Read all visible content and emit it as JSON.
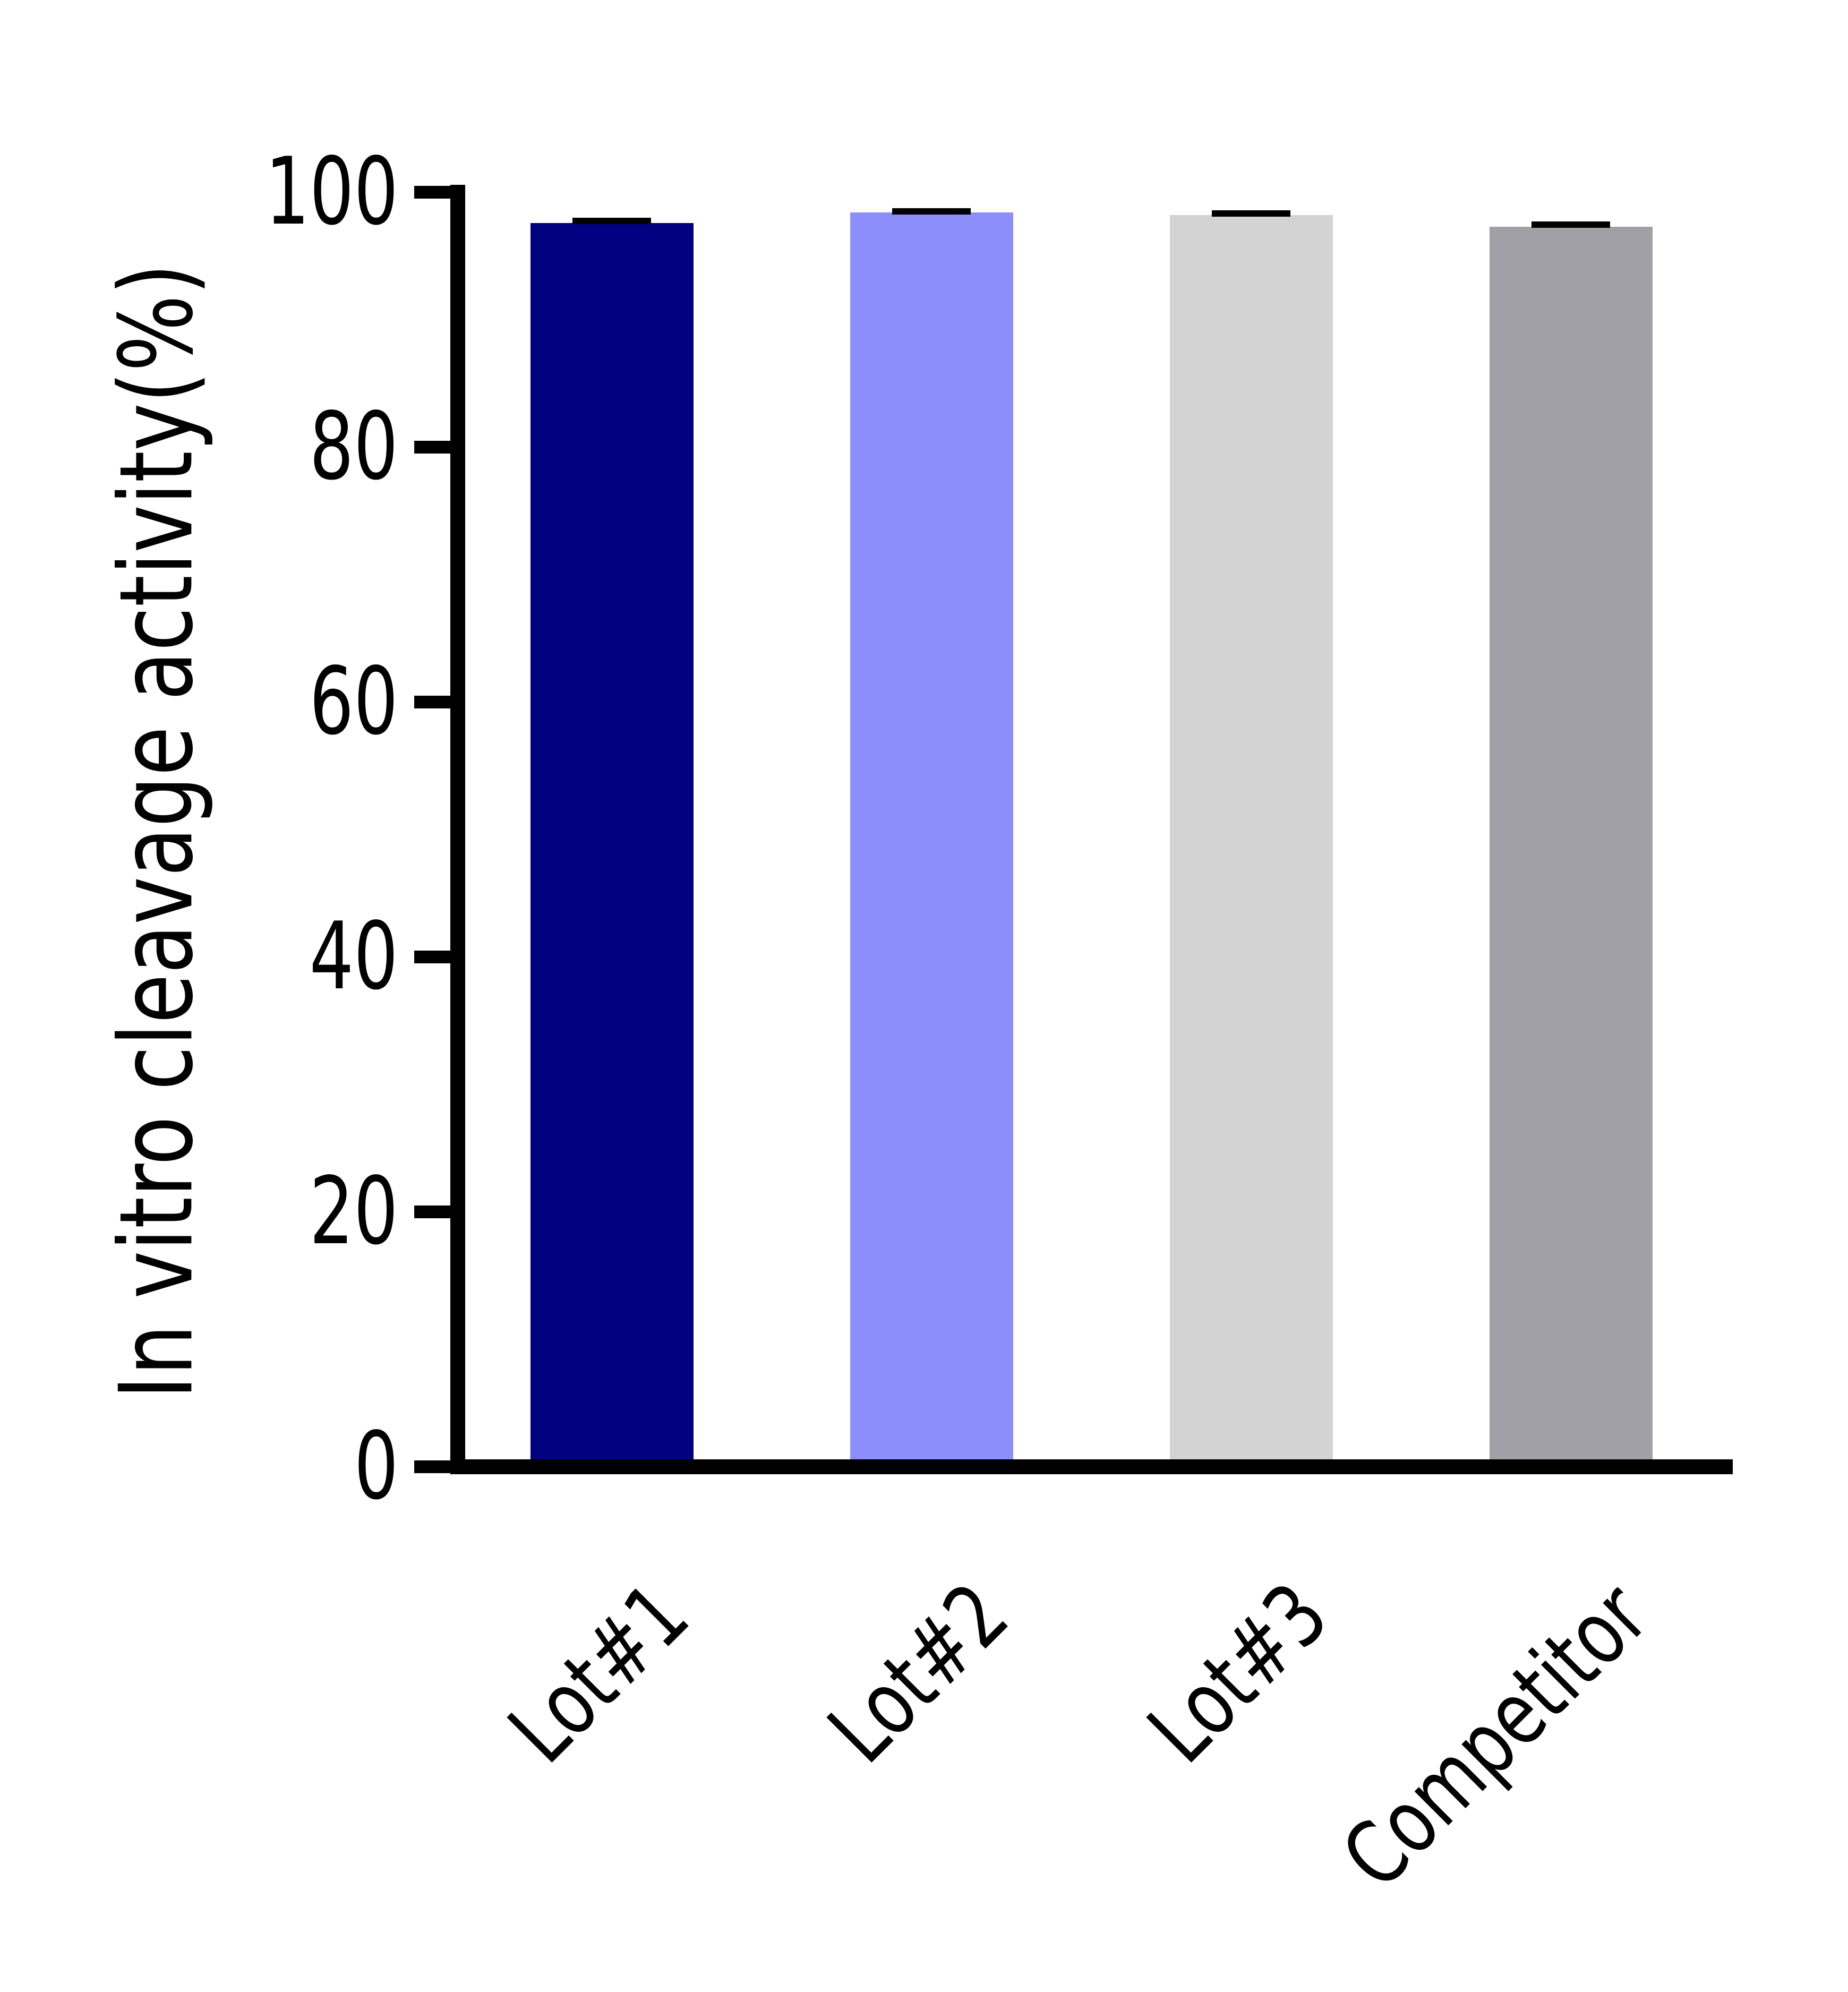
{
  "chart_data": {
    "type": "bar",
    "title": "",
    "xlabel": "",
    "ylabel": "In vitro cleavage activity(%)",
    "categories": [
      "Lot#1",
      "Lot#2",
      "Lot#3",
      "Competitor"
    ],
    "series": [
      {
        "name": "In vitro cleavage activity",
        "values": [
          97.6,
          98.4,
          98.2,
          97.3
        ],
        "errors": [
          0.4,
          0.35,
          0.4,
          0.4
        ]
      }
    ],
    "bar_colors": [
      "#000080",
      "#8C8EFC",
      "#D3D3D4",
      "#A0A0A6"
    ],
    "error_bar_color": "#000000",
    "axis_color": "#000000",
    "background_color": "#ffffff",
    "ylim": [
      0,
      100
    ],
    "yticks": [
      0,
      20,
      40,
      60,
      80,
      100
    ],
    "ytick_labels": [
      "0",
      "20",
      "40",
      "60",
      "80",
      "100"
    ],
    "grid": false,
    "legend": null,
    "xtick_rotation_deg": 45
  }
}
